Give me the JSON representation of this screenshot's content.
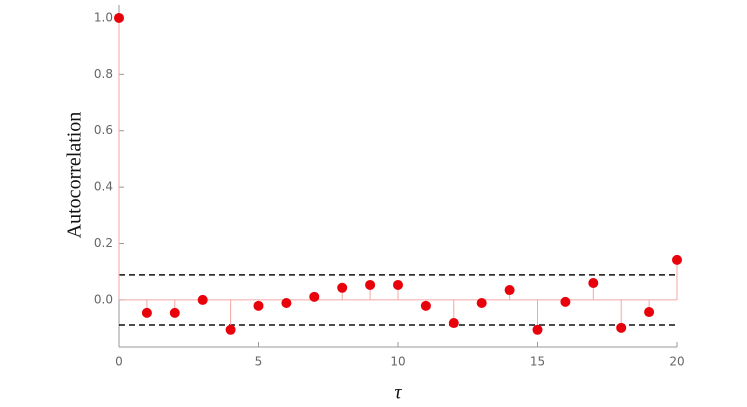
{
  "chart_data": {
    "type": "stem",
    "x_label": "τ",
    "y_label": "Autocorrelation",
    "x": [
      0,
      1,
      2,
      3,
      4,
      5,
      6,
      7,
      8,
      9,
      10,
      11,
      12,
      13,
      14,
      15,
      16,
      17,
      18,
      19,
      20
    ],
    "values": [
      1.0,
      -0.046,
      -0.046,
      0.0,
      -0.106,
      -0.021,
      -0.011,
      0.011,
      0.043,
      0.053,
      0.053,
      -0.021,
      -0.082,
      -0.011,
      0.035,
      -0.106,
      -0.007,
      0.06,
      -0.099,
      -0.043,
      0.142
    ],
    "color": "#e8000b",
    "stem_color": "#f4a6a6",
    "reference_lines": [
      0.089,
      -0.089
    ],
    "xlim": [
      0,
      20
    ],
    "ylim": [
      -0.167,
      1.046
    ],
    "xticks": [
      0,
      5,
      10,
      15,
      20
    ],
    "yticks": [
      {
        "value": 0.0,
        "label": "0.0"
      },
      {
        "value": 0.2,
        "label": "0.2"
      },
      {
        "value": 0.4,
        "label": "0.4"
      },
      {
        "value": 0.6,
        "label": "0.6"
      },
      {
        "value": 0.8,
        "label": "0.8"
      },
      {
        "value": 1.0,
        "label": "1.0"
      }
    ]
  }
}
